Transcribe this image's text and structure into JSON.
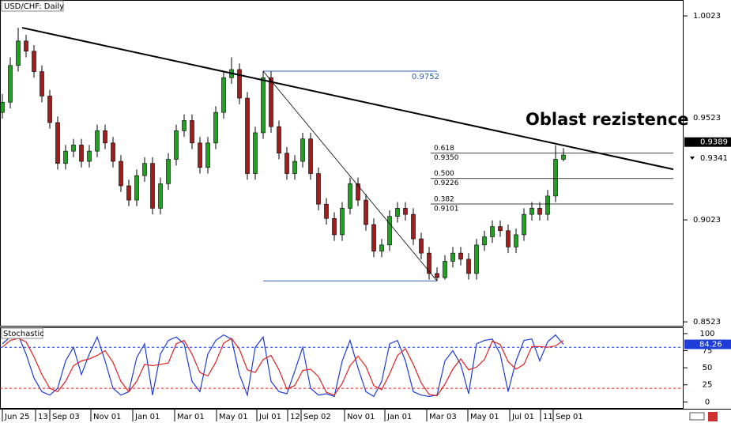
{
  "chart_data": [
    {
      "type": "candlestick",
      "title": "USD/CHF: Daily",
      "up_color": "#22a022",
      "down_color": "#a31d1d",
      "candles": [
        [
          0.955,
          0.964,
          0.952,
          0.96
        ],
        [
          0.96,
          0.982,
          0.957,
          0.978
        ],
        [
          0.978,
          0.9965,
          0.975,
          0.99
        ],
        [
          0.99,
          0.993,
          0.982,
          0.985
        ],
        [
          0.985,
          0.988,
          0.972,
          0.975
        ],
        [
          0.975,
          0.978,
          0.96,
          0.963
        ],
        [
          0.963,
          0.966,
          0.947,
          0.95
        ],
        [
          0.95,
          0.953,
          0.927,
          0.93
        ],
        [
          0.93,
          0.939,
          0.927,
          0.936
        ],
        [
          0.936,
          0.942,
          0.933,
          0.939
        ],
        [
          0.939,
          0.942,
          0.928,
          0.931
        ],
        [
          0.931,
          0.939,
          0.928,
          0.936
        ],
        [
          0.936,
          0.949,
          0.933,
          0.946
        ],
        [
          0.946,
          0.949,
          0.937,
          0.94
        ],
        [
          0.94,
          0.943,
          0.928,
          0.931
        ],
        [
          0.931,
          0.934,
          0.916,
          0.919
        ],
        [
          0.919,
          0.922,
          0.909,
          0.912
        ],
        [
          0.912,
          0.927,
          0.909,
          0.924
        ],
        [
          0.924,
          0.933,
          0.921,
          0.93
        ],
        [
          0.93,
          0.933,
          0.905,
          0.908
        ],
        [
          0.908,
          0.923,
          0.905,
          0.92
        ],
        [
          0.92,
          0.935,
          0.917,
          0.932
        ],
        [
          0.932,
          0.949,
          0.929,
          0.946
        ],
        [
          0.946,
          0.954,
          0.943,
          0.951
        ],
        [
          0.951,
          0.954,
          0.937,
          0.94
        ],
        [
          0.94,
          0.943,
          0.925,
          0.928
        ],
        [
          0.928,
          0.943,
          0.925,
          0.94
        ],
        [
          0.94,
          0.958,
          0.937,
          0.955
        ],
        [
          0.955,
          0.975,
          0.952,
          0.972
        ],
        [
          0.972,
          0.982,
          0.969,
          0.976
        ],
        [
          0.976,
          0.979,
          0.959,
          0.962
        ],
        [
          0.962,
          0.965,
          0.922,
          0.925
        ],
        [
          0.925,
          0.948,
          0.922,
          0.945
        ],
        [
          0.945,
          0.9752,
          0.942,
          0.972
        ],
        [
          0.972,
          0.975,
          0.945,
          0.948
        ],
        [
          0.948,
          0.951,
          0.932,
          0.935
        ],
        [
          0.935,
          0.938,
          0.922,
          0.925
        ],
        [
          0.925,
          0.934,
          0.922,
          0.931
        ],
        [
          0.931,
          0.945,
          0.928,
          0.942
        ],
        [
          0.942,
          0.945,
          0.922,
          0.925
        ],
        [
          0.925,
          0.928,
          0.907,
          0.91
        ],
        [
          0.91,
          0.913,
          0.9,
          0.903
        ],
        [
          0.903,
          0.906,
          0.892,
          0.895
        ],
        [
          0.895,
          0.911,
          0.892,
          0.908
        ],
        [
          0.908,
          0.923,
          0.905,
          0.92
        ],
        [
          0.92,
          0.923,
          0.909,
          0.912
        ],
        [
          0.912,
          0.915,
          0.897,
          0.9
        ],
        [
          0.9,
          0.903,
          0.884,
          0.887
        ],
        [
          0.887,
          0.893,
          0.884,
          0.89
        ],
        [
          0.89,
          0.907,
          0.887,
          0.904
        ],
        [
          0.904,
          0.911,
          0.901,
          0.908
        ],
        [
          0.908,
          0.911,
          0.902,
          0.905
        ],
        [
          0.905,
          0.908,
          0.89,
          0.893
        ],
        [
          0.893,
          0.896,
          0.883,
          0.886
        ],
        [
          0.886,
          0.889,
          0.873,
          0.876
        ],
        [
          0.876,
          0.879,
          0.8724,
          0.874
        ],
        [
          0.874,
          0.885,
          0.873,
          0.882
        ],
        [
          0.882,
          0.889,
          0.879,
          0.886
        ],
        [
          0.886,
          0.889,
          0.88,
          0.883
        ],
        [
          0.883,
          0.886,
          0.873,
          0.876
        ],
        [
          0.876,
          0.893,
          0.873,
          0.89
        ],
        [
          0.89,
          0.897,
          0.887,
          0.894
        ],
        [
          0.894,
          0.902,
          0.891,
          0.899
        ],
        [
          0.899,
          0.902,
          0.894,
          0.897
        ],
        [
          0.897,
          0.9,
          0.886,
          0.889
        ],
        [
          0.889,
          0.898,
          0.886,
          0.895
        ],
        [
          0.895,
          0.908,
          0.892,
          0.905
        ],
        [
          0.905,
          0.911,
          0.902,
          0.908
        ],
        [
          0.908,
          0.911,
          0.902,
          0.905
        ],
        [
          0.905,
          0.917,
          0.902,
          0.914
        ],
        [
          0.914,
          0.9389,
          0.911,
          0.932
        ],
        [
          0.932,
          0.9375,
          0.931,
          0.9341
        ]
      ],
      "xlim": [
        -0.3,
        86.2
      ],
      "ylim": [
        0.85,
        1.0101
      ],
      "yticks": [
        1.0023,
        0.9523,
        0.9023,
        0.8523
      ],
      "xticks": [
        {
          "value": 0,
          "label": "Jun 25"
        },
        {
          "value": 4.2,
          "label": "13"
        },
        {
          "value": 6,
          "label": "Sep 03"
        },
        {
          "value": 11.2,
          "label": "Nov 01"
        },
        {
          "value": 16.5,
          "label": "Jan 01"
        },
        {
          "value": 21.8,
          "label": "Mar 01"
        },
        {
          "value": 27.1,
          "label": "May 01"
        },
        {
          "value": 32.2,
          "label": "Jul 01"
        },
        {
          "value": 36.1,
          "label": "12"
        },
        {
          "value": 37.8,
          "label": "Sep 02"
        },
        {
          "value": 43.3,
          "label": "Nov 01"
        },
        {
          "value": 48.4,
          "label": "Jan 01"
        },
        {
          "value": 53.7,
          "label": "Mar 03"
        },
        {
          "value": 58.9,
          "label": "May 01"
        },
        {
          "value": 64.2,
          "label": "Jul 01"
        },
        {
          "value": 68.1,
          "label": "11"
        },
        {
          "value": 69.7,
          "label": "Sep 01"
        }
      ],
      "price_labels": [
        0.9389,
        0.9341
      ],
      "trendline": {
        "x": [
          2.5,
          84.9
        ],
        "y": [
          0.9965,
          0.9271
        ]
      },
      "fibonacci": {
        "x": [
          33,
          55
        ],
        "high": 0.9752,
        "low": 0.8724,
        "end_x": 84.9,
        "levels": [
          {
            "ratio": "0.618",
            "price": {
              "value": 0.935,
              "label": "0.9350"
            }
          },
          {
            "ratio": "0.500",
            "price": 0.9226
          },
          {
            "ratio": "0.382",
            "price": 0.9101
          }
        ]
      },
      "annotation": "Oblast rezistence"
    },
    {
      "type": "line",
      "title": "Stochastic",
      "ylim": [
        -10,
        108
      ],
      "yticks": [
        0,
        25,
        50,
        75,
        100
      ],
      "levels": [
        {
          "value": 80,
          "color": "#1e3cd8"
        },
        {
          "value": 20,
          "color": "#e02020"
        }
      ],
      "current": 84.26,
      "series": [
        {
          "color": "#1e3cd8",
          "values": [
            85,
            95,
            98,
            70,
            35,
            15,
            10,
            20,
            60,
            80,
            40,
            70,
            95,
            60,
            20,
            10,
            15,
            65,
            85,
            10,
            70,
            90,
            95,
            85,
            30,
            15,
            70,
            90,
            98,
            92,
            40,
            10,
            80,
            95,
            30,
            15,
            12,
            45,
            80,
            20,
            10,
            12,
            8,
            60,
            90,
            50,
            15,
            8,
            30,
            85,
            90,
            60,
            15,
            10,
            8,
            10,
            60,
            75,
            55,
            12,
            85,
            90,
            92,
            70,
            15,
            60,
            90,
            92,
            60,
            88,
            98,
            84.26
          ]
        },
        {
          "color": "#e02020",
          "values": [
            80,
            90,
            93,
            88,
            66,
            40,
            20,
            15,
            30,
            53,
            60,
            63,
            68,
            75,
            58,
            30,
            15,
            30,
            55,
            53,
            55,
            57,
            85,
            90,
            70,
            43,
            38,
            58,
            86,
            93,
            77,
            47,
            43,
            62,
            68,
            47,
            19,
            24,
            46,
            48,
            37,
            14,
            10,
            27,
            53,
            67,
            52,
            24,
            18,
            41,
            68,
            78,
            55,
            28,
            11,
            9,
            26,
            48,
            63,
            47,
            51,
            62,
            89,
            84,
            59,
            48,
            55,
            81,
            81,
            80,
            82,
            90
          ]
        }
      ]
    }
  ]
}
